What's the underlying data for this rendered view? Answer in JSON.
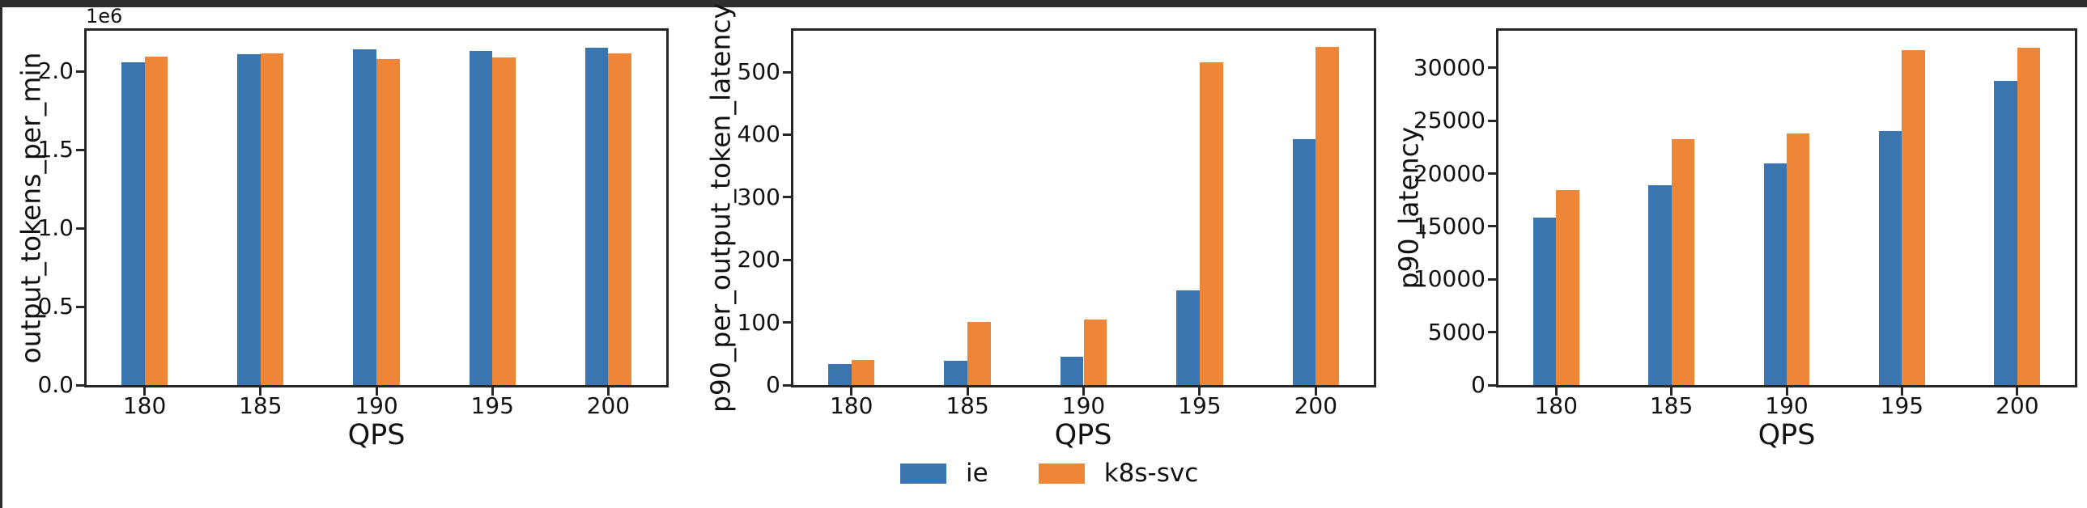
{
  "window": {
    "background": "#ffffff",
    "top_edge_color": "#2e2e2e",
    "left_edge_color": "#2e2e2e"
  },
  "palette": {
    "ie": "#3b75af",
    "k8s_svc": "#ef8536",
    "axis_line": "#262626",
    "text": "#111111"
  },
  "legend": {
    "items": [
      {
        "label": "ie",
        "color": "#3b75af"
      },
      {
        "label": "k8s-svc",
        "color": "#ef8536"
      }
    ]
  },
  "chart_data": [
    {
      "type": "bar",
      "title": "",
      "xlabel": "QPS",
      "ylabel": "output_tokens_per_min",
      "scale_label": "1e6",
      "categories": [
        "180",
        "185",
        "190",
        "195",
        "200"
      ],
      "series": [
        {
          "name": "ie",
          "color": "#3b75af",
          "values": [
            2057000,
            2110000,
            2142000,
            2133000,
            2153000
          ]
        },
        {
          "name": "k8s-svc",
          "color": "#ef8536",
          "values": [
            2093000,
            2115000,
            2081000,
            2091000,
            2117000
          ]
        }
      ],
      "ylim": [
        0,
        2260000
      ],
      "yticks": [
        {
          "value": 0,
          "label": "0.0"
        },
        {
          "value": 500000,
          "label": "0.5"
        },
        {
          "value": 1000000,
          "label": "1.0"
        },
        {
          "value": 1500000,
          "label": "1.5"
        },
        {
          "value": 2000000,
          "label": "2.0"
        }
      ],
      "grid": false,
      "legend_position": "none"
    },
    {
      "type": "bar",
      "title": "",
      "xlabel": "QPS",
      "ylabel": "p90_per_output_token_latency",
      "scale_label": "",
      "categories": [
        "180",
        "185",
        "190",
        "195",
        "200"
      ],
      "series": [
        {
          "name": "ie",
          "color": "#3b75af",
          "values": [
            33,
            39,
            45,
            151,
            393
          ]
        },
        {
          "name": "k8s-svc",
          "color": "#ef8536",
          "values": [
            40,
            101,
            105,
            516,
            540
          ]
        }
      ],
      "ylim": [
        0,
        566
      ],
      "yticks": [
        {
          "value": 0,
          "label": "0"
        },
        {
          "value": 100,
          "label": "100"
        },
        {
          "value": 200,
          "label": "200"
        },
        {
          "value": 300,
          "label": "300"
        },
        {
          "value": 400,
          "label": "400"
        },
        {
          "value": 500,
          "label": "500"
        }
      ],
      "grid": false,
      "legend_position": "below-center"
    },
    {
      "type": "bar",
      "title": "",
      "xlabel": "QPS",
      "ylabel": "p90_latency",
      "scale_label": "",
      "categories": [
        "180",
        "185",
        "190",
        "195",
        "200"
      ],
      "series": [
        {
          "name": "ie",
          "color": "#3b75af",
          "values": [
            15800,
            18900,
            20950,
            24050,
            28750
          ]
        },
        {
          "name": "k8s-svc",
          "color": "#ef8536",
          "values": [
            18450,
            23250,
            23800,
            31650,
            31900
          ]
        }
      ],
      "ylim": [
        0,
        33500
      ],
      "yticks": [
        {
          "value": 0,
          "label": "0"
        },
        {
          "value": 5000,
          "label": "5000"
        },
        {
          "value": 10000,
          "label": "10000"
        },
        {
          "value": 15000,
          "label": "15000"
        },
        {
          "value": 20000,
          "label": "20000"
        },
        {
          "value": 25000,
          "label": "25000"
        },
        {
          "value": 30000,
          "label": "30000"
        }
      ],
      "grid": false,
      "legend_position": "none"
    }
  ]
}
